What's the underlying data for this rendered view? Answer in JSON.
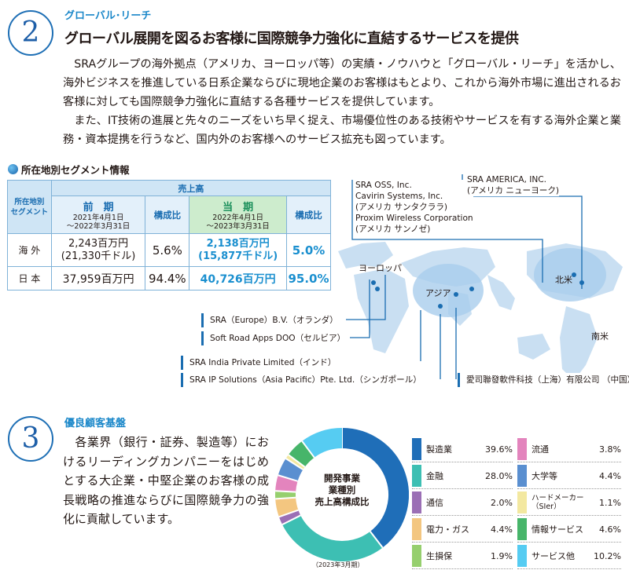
{
  "section2": {
    "number": "2",
    "eyebrow": "グローバル･リーチ",
    "title": "グローバル展開を図るお客様に国際競争力強化に直結するサービスを提供",
    "paragraph1": "　SRAグループの海外拠点（アメリカ、ヨーロッパ等）の実績・ノウハウと「グローバル・リーチ」を活かし、海外ビジネスを推進している日系企業ならびに現地企業のお客様はもとより、これから海外市場に進出されるお客様に対しても国際競争力強化に直結する各種サービスを提供しています。",
    "paragraph2": "　また、IT技術の進展と先々のニーズをいち早く捉え、市場優位性のある技術やサービスを有する海外企業と業務・資本提携を行うなど、国内外のお客様へのサービス拡充も図っています。"
  },
  "segment": {
    "heading": "所在地別セグメント情報",
    "header_left": "所在地別\nセグメント",
    "header_sales": "売上高",
    "prev_label": "前　期",
    "prev_period": "2021年4月1日\n～2022年3月31日",
    "ratio_label": "構成比",
    "curr_label": "当　期",
    "curr_period": "2022年4月1日\n～2023年3月31日",
    "rows": [
      {
        "region": "海 外",
        "prev": "2,243百万円\n(21,330千ドル)",
        "prev_ratio": "5.6%",
        "curr": "2,138百万円\n(15,877千ドル)",
        "curr_ratio": "5.0%"
      },
      {
        "region": "日 本",
        "prev": "37,959百万円",
        "prev_ratio": "94.4%",
        "curr": "40,726百万円",
        "curr_ratio": "95.0%"
      }
    ]
  },
  "map": {
    "offices": {
      "oss": "SRA OSS, Inc.\nCavirin Systems, Inc.\n(アメリカ  サンタクララ)\nProxim Wireless Corporation\n(アメリカ  サンノゼ)",
      "america": "SRA AMERICA, INC.\n(アメリカ  ニューヨーク)",
      "europe": "SRA（Europe）B.V.（オランダ）",
      "softroad": "Soft Road Apps DOO（セルビア）",
      "india": "SRA India Private Limited（インド）",
      "ip": "SRA IP Solutions（Asia Pacific）Pte. Ltd.（シンガポール）",
      "china": "愛司聯發軟件科技（上海）有限公司 （中国）"
    },
    "regions": {
      "europe": "ヨーロッパ",
      "asia": "アジア",
      "north_america": "北米",
      "south_america": "南米"
    }
  },
  "section3": {
    "number": "3",
    "eyebrow": "優良顧客基盤",
    "paragraph": "　各業界（銀行・証券、製造等）におけるリーディングカンパニーをはじめとする大企業・中堅企業のお客様の成長戦略の推進ならびに国際競争力の強化に貢献しています。"
  },
  "chart_data": {
    "type": "pie",
    "title": "開発事業\n業種別\n売上高構成比",
    "note": "（2023年3月期）",
    "slices": [
      {
        "name": "製造業",
        "value": 39.6,
        "label": "39.6%",
        "color": "#1f6eb8"
      },
      {
        "name": "金融",
        "value": 28.0,
        "label": "28.0%",
        "color": "#3dbfb3"
      },
      {
        "name": "通信",
        "value": 2.0,
        "label": "2.0%",
        "color": "#9b6fb5"
      },
      {
        "name": "電力・ガス",
        "value": 4.4,
        "label": "4.4%",
        "color": "#f3c680"
      },
      {
        "name": "生損保",
        "value": 1.9,
        "label": "1.9%",
        "color": "#96cf6e"
      },
      {
        "name": "流通",
        "value": 3.8,
        "label": "3.8%",
        "color": "#e384bd"
      },
      {
        "name": "大学等",
        "value": 4.4,
        "label": "4.4%",
        "color": "#5a8fd0"
      },
      {
        "name": "ハードメーカー\n（SIer）",
        "value": 1.1,
        "label": "1.1%",
        "color": "#f3e8a0"
      },
      {
        "name": "情報サービス",
        "value": 4.6,
        "label": "4.6%",
        "color": "#47b56a"
      },
      {
        "name": "サービス他",
        "value": 10.2,
        "label": "10.2%",
        "color": "#56ccf2"
      }
    ]
  }
}
